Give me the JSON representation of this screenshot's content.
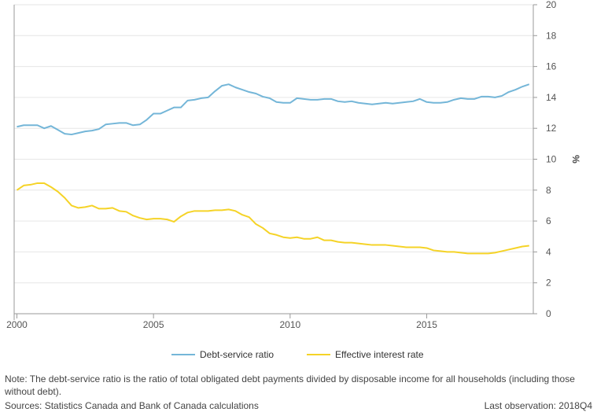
{
  "chart_data": {
    "type": "line",
    "title": "",
    "xlabel": "",
    "ylabel": "%",
    "xlim": [
      1999.9,
      2018.9
    ],
    "ylim": [
      0,
      20
    ],
    "x_ticks": [
      2000,
      2005,
      2010,
      2015
    ],
    "y_ticks": [
      0,
      2,
      4,
      6,
      8,
      10,
      12,
      14,
      16,
      18,
      20
    ],
    "legend_position": "bottom-center",
    "series": [
      {
        "name": "Debt-service ratio",
        "color": "#74b6d8",
        "points": [
          [
            2000.0,
            12.1
          ],
          [
            2000.25,
            12.2
          ],
          [
            2000.5,
            12.2
          ],
          [
            2000.75,
            12.2
          ],
          [
            2001.0,
            12.0
          ],
          [
            2001.25,
            12.15
          ],
          [
            2001.5,
            11.9
          ],
          [
            2001.75,
            11.65
          ],
          [
            2002.0,
            11.6
          ],
          [
            2002.25,
            11.7
          ],
          [
            2002.5,
            11.8
          ],
          [
            2002.75,
            11.85
          ],
          [
            2003.0,
            11.95
          ],
          [
            2003.25,
            12.25
          ],
          [
            2003.5,
            12.3
          ],
          [
            2003.75,
            12.35
          ],
          [
            2004.0,
            12.35
          ],
          [
            2004.25,
            12.2
          ],
          [
            2004.5,
            12.25
          ],
          [
            2004.75,
            12.55
          ],
          [
            2005.0,
            12.95
          ],
          [
            2005.25,
            12.95
          ],
          [
            2005.5,
            13.15
          ],
          [
            2005.75,
            13.35
          ],
          [
            2006.0,
            13.35
          ],
          [
            2006.25,
            13.8
          ],
          [
            2006.5,
            13.85
          ],
          [
            2006.75,
            13.95
          ],
          [
            2007.0,
            14.0
          ],
          [
            2007.25,
            14.4
          ],
          [
            2007.5,
            14.75
          ],
          [
            2007.75,
            14.85
          ],
          [
            2008.0,
            14.65
          ],
          [
            2008.25,
            14.5
          ],
          [
            2008.5,
            14.35
          ],
          [
            2008.75,
            14.25
          ],
          [
            2009.0,
            14.05
          ],
          [
            2009.25,
            13.95
          ],
          [
            2009.5,
            13.7
          ],
          [
            2009.75,
            13.65
          ],
          [
            2010.0,
            13.65
          ],
          [
            2010.25,
            13.95
          ],
          [
            2010.5,
            13.9
          ],
          [
            2010.75,
            13.85
          ],
          [
            2011.0,
            13.85
          ],
          [
            2011.25,
            13.9
          ],
          [
            2011.5,
            13.9
          ],
          [
            2011.75,
            13.75
          ],
          [
            2012.0,
            13.7
          ],
          [
            2012.25,
            13.75
          ],
          [
            2012.5,
            13.65
          ],
          [
            2012.75,
            13.6
          ],
          [
            2013.0,
            13.55
          ],
          [
            2013.25,
            13.6
          ],
          [
            2013.5,
            13.65
          ],
          [
            2013.75,
            13.6
          ],
          [
            2014.0,
            13.65
          ],
          [
            2014.25,
            13.7
          ],
          [
            2014.5,
            13.75
          ],
          [
            2014.75,
            13.9
          ],
          [
            2015.0,
            13.7
          ],
          [
            2015.25,
            13.65
          ],
          [
            2015.5,
            13.65
          ],
          [
            2015.75,
            13.7
          ],
          [
            2016.0,
            13.85
          ],
          [
            2016.25,
            13.95
          ],
          [
            2016.5,
            13.9
          ],
          [
            2016.75,
            13.9
          ],
          [
            2017.0,
            14.05
          ],
          [
            2017.25,
            14.05
          ],
          [
            2017.5,
            14.0
          ],
          [
            2017.75,
            14.1
          ],
          [
            2018.0,
            14.35
          ],
          [
            2018.25,
            14.5
          ],
          [
            2018.5,
            14.7
          ],
          [
            2018.75,
            14.85
          ]
        ]
      },
      {
        "name": "Effective interest rate",
        "color": "#f5d327",
        "points": [
          [
            2000.0,
            8.0
          ],
          [
            2000.25,
            8.3
          ],
          [
            2000.5,
            8.35
          ],
          [
            2000.75,
            8.45
          ],
          [
            2001.0,
            8.45
          ],
          [
            2001.25,
            8.2
          ],
          [
            2001.5,
            7.9
          ],
          [
            2001.75,
            7.5
          ],
          [
            2002.0,
            7.0
          ],
          [
            2002.25,
            6.85
          ],
          [
            2002.5,
            6.9
          ],
          [
            2002.75,
            7.0
          ],
          [
            2003.0,
            6.8
          ],
          [
            2003.25,
            6.8
          ],
          [
            2003.5,
            6.85
          ],
          [
            2003.75,
            6.65
          ],
          [
            2004.0,
            6.6
          ],
          [
            2004.25,
            6.35
          ],
          [
            2004.5,
            6.2
          ],
          [
            2004.75,
            6.1
          ],
          [
            2005.0,
            6.15
          ],
          [
            2005.25,
            6.15
          ],
          [
            2005.5,
            6.1
          ],
          [
            2005.75,
            5.95
          ],
          [
            2006.0,
            6.3
          ],
          [
            2006.25,
            6.55
          ],
          [
            2006.5,
            6.65
          ],
          [
            2006.75,
            6.65
          ],
          [
            2007.0,
            6.65
          ],
          [
            2007.25,
            6.7
          ],
          [
            2007.5,
            6.7
          ],
          [
            2007.75,
            6.75
          ],
          [
            2008.0,
            6.65
          ],
          [
            2008.25,
            6.4
          ],
          [
            2008.5,
            6.25
          ],
          [
            2008.75,
            5.8
          ],
          [
            2009.0,
            5.55
          ],
          [
            2009.25,
            5.2
          ],
          [
            2009.5,
            5.1
          ],
          [
            2009.75,
            4.95
          ],
          [
            2010.0,
            4.9
          ],
          [
            2010.25,
            4.95
          ],
          [
            2010.5,
            4.85
          ],
          [
            2010.75,
            4.85
          ],
          [
            2011.0,
            4.95
          ],
          [
            2011.25,
            4.75
          ],
          [
            2011.5,
            4.75
          ],
          [
            2011.75,
            4.65
          ],
          [
            2012.0,
            4.6
          ],
          [
            2012.25,
            4.6
          ],
          [
            2012.5,
            4.55
          ],
          [
            2012.75,
            4.5
          ],
          [
            2013.0,
            4.45
          ],
          [
            2013.25,
            4.45
          ],
          [
            2013.5,
            4.45
          ],
          [
            2013.75,
            4.4
          ],
          [
            2014.0,
            4.35
          ],
          [
            2014.25,
            4.3
          ],
          [
            2014.5,
            4.3
          ],
          [
            2014.75,
            4.3
          ],
          [
            2015.0,
            4.25
          ],
          [
            2015.25,
            4.1
          ],
          [
            2015.5,
            4.05
          ],
          [
            2015.75,
            4.0
          ],
          [
            2016.0,
            4.0
          ],
          [
            2016.25,
            3.95
          ],
          [
            2016.5,
            3.9
          ],
          [
            2016.75,
            3.9
          ],
          [
            2017.0,
            3.9
          ],
          [
            2017.25,
            3.9
          ],
          [
            2017.5,
            3.95
          ],
          [
            2017.75,
            4.05
          ],
          [
            2018.0,
            4.15
          ],
          [
            2018.25,
            4.25
          ],
          [
            2018.5,
            4.35
          ],
          [
            2018.75,
            4.4
          ]
        ]
      }
    ]
  },
  "footer": {
    "note": "Note: The debt-service ratio is the ratio of total obligated debt payments divided by disposable income for all households (including those without debt).",
    "sources": "Sources: Statistics Canada and Bank of Canada calculations",
    "last_observation": "Last observation: 2018Q4"
  }
}
